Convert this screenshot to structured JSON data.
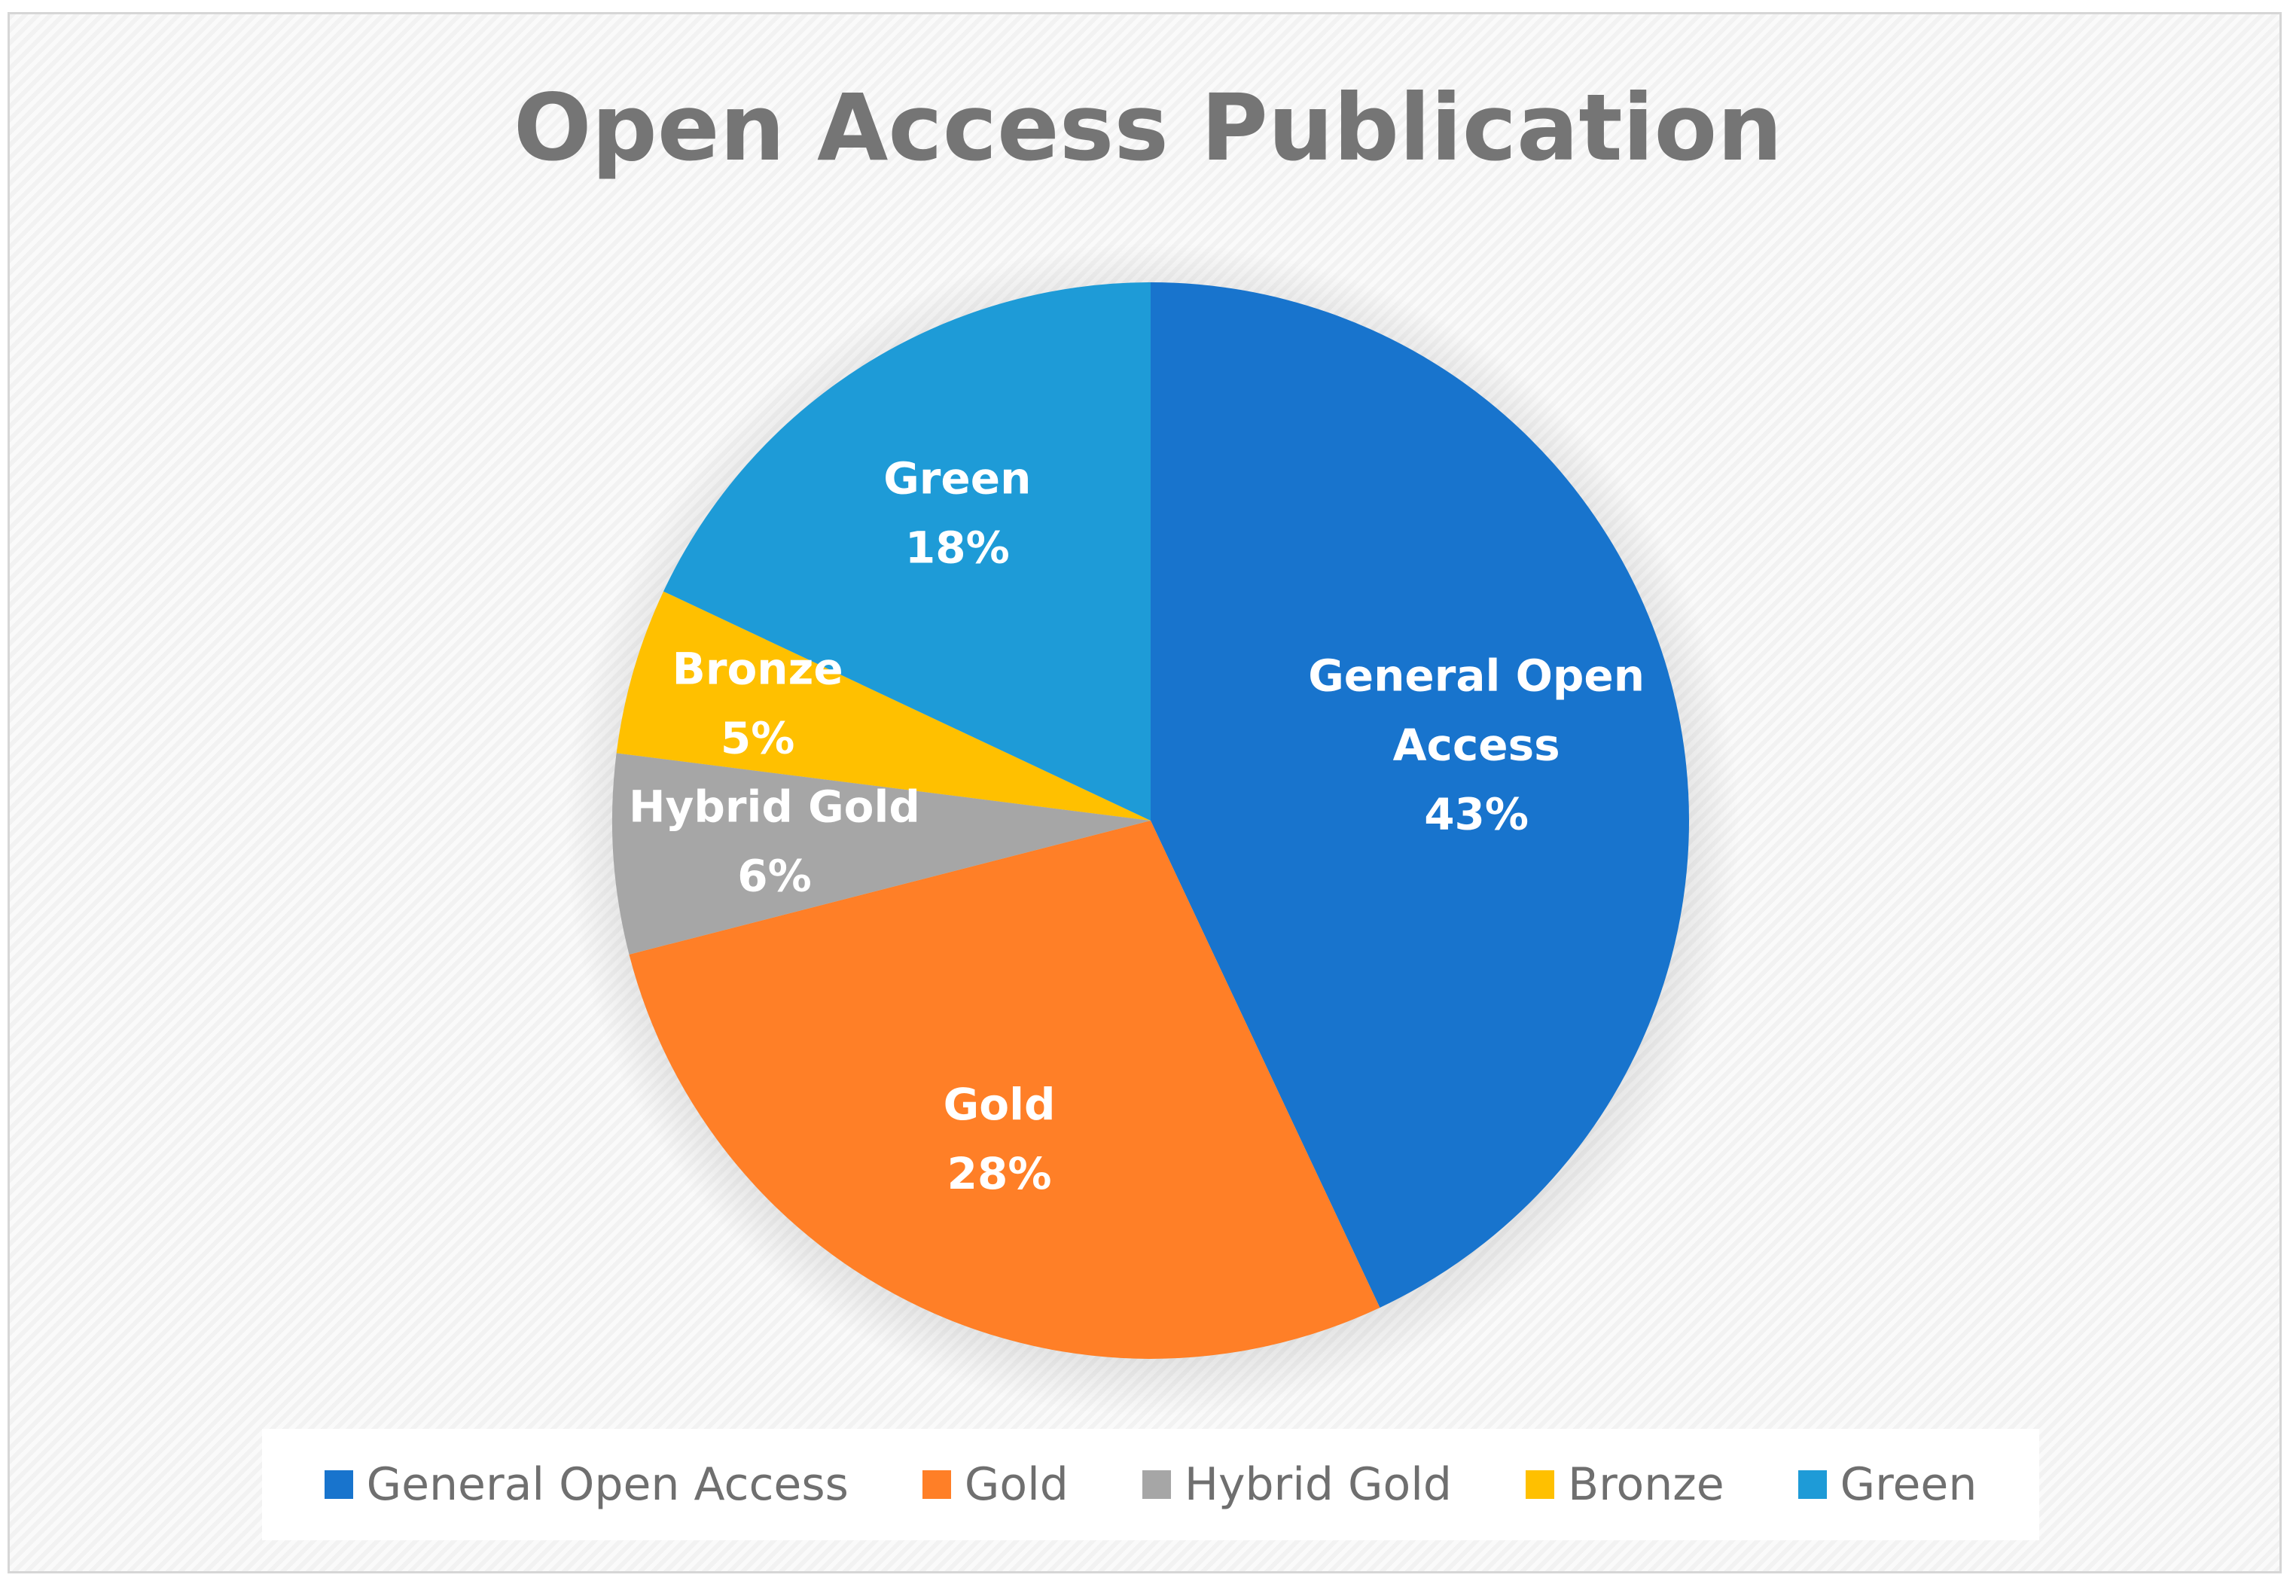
{
  "chart_data": {
    "type": "pie",
    "title": "Open Access Publication",
    "slices": [
      {
        "name": "General Open Access",
        "label_lines": [
          "General Open",
          "Access"
        ],
        "value": 43,
        "percent_label": "43%",
        "color": "#1874CD"
      },
      {
        "name": "Gold",
        "label_lines": [
          "Gold"
        ],
        "value": 28,
        "percent_label": "28%",
        "color": "#FF7F27"
      },
      {
        "name": "Hybrid Gold",
        "label_lines": [
          "Hybrid Gold"
        ],
        "value": 6,
        "percent_label": "6%",
        "color": "#A6A6A6"
      },
      {
        "name": "Bronze",
        "label_lines": [
          "Bronze"
        ],
        "value": 5,
        "percent_label": "5%",
        "color": "#FFC000"
      },
      {
        "name": "Green",
        "label_lines": [
          "Green"
        ],
        "value": 18,
        "percent_label": "18%",
        "color": "#1E9BD7"
      }
    ],
    "legend": {
      "position": "bottom",
      "entries": [
        "General Open Access",
        "Gold",
        "Hybrid Gold",
        "Bronze",
        "Green"
      ]
    },
    "start_angle_deg": 0,
    "direction": "clockwise"
  }
}
